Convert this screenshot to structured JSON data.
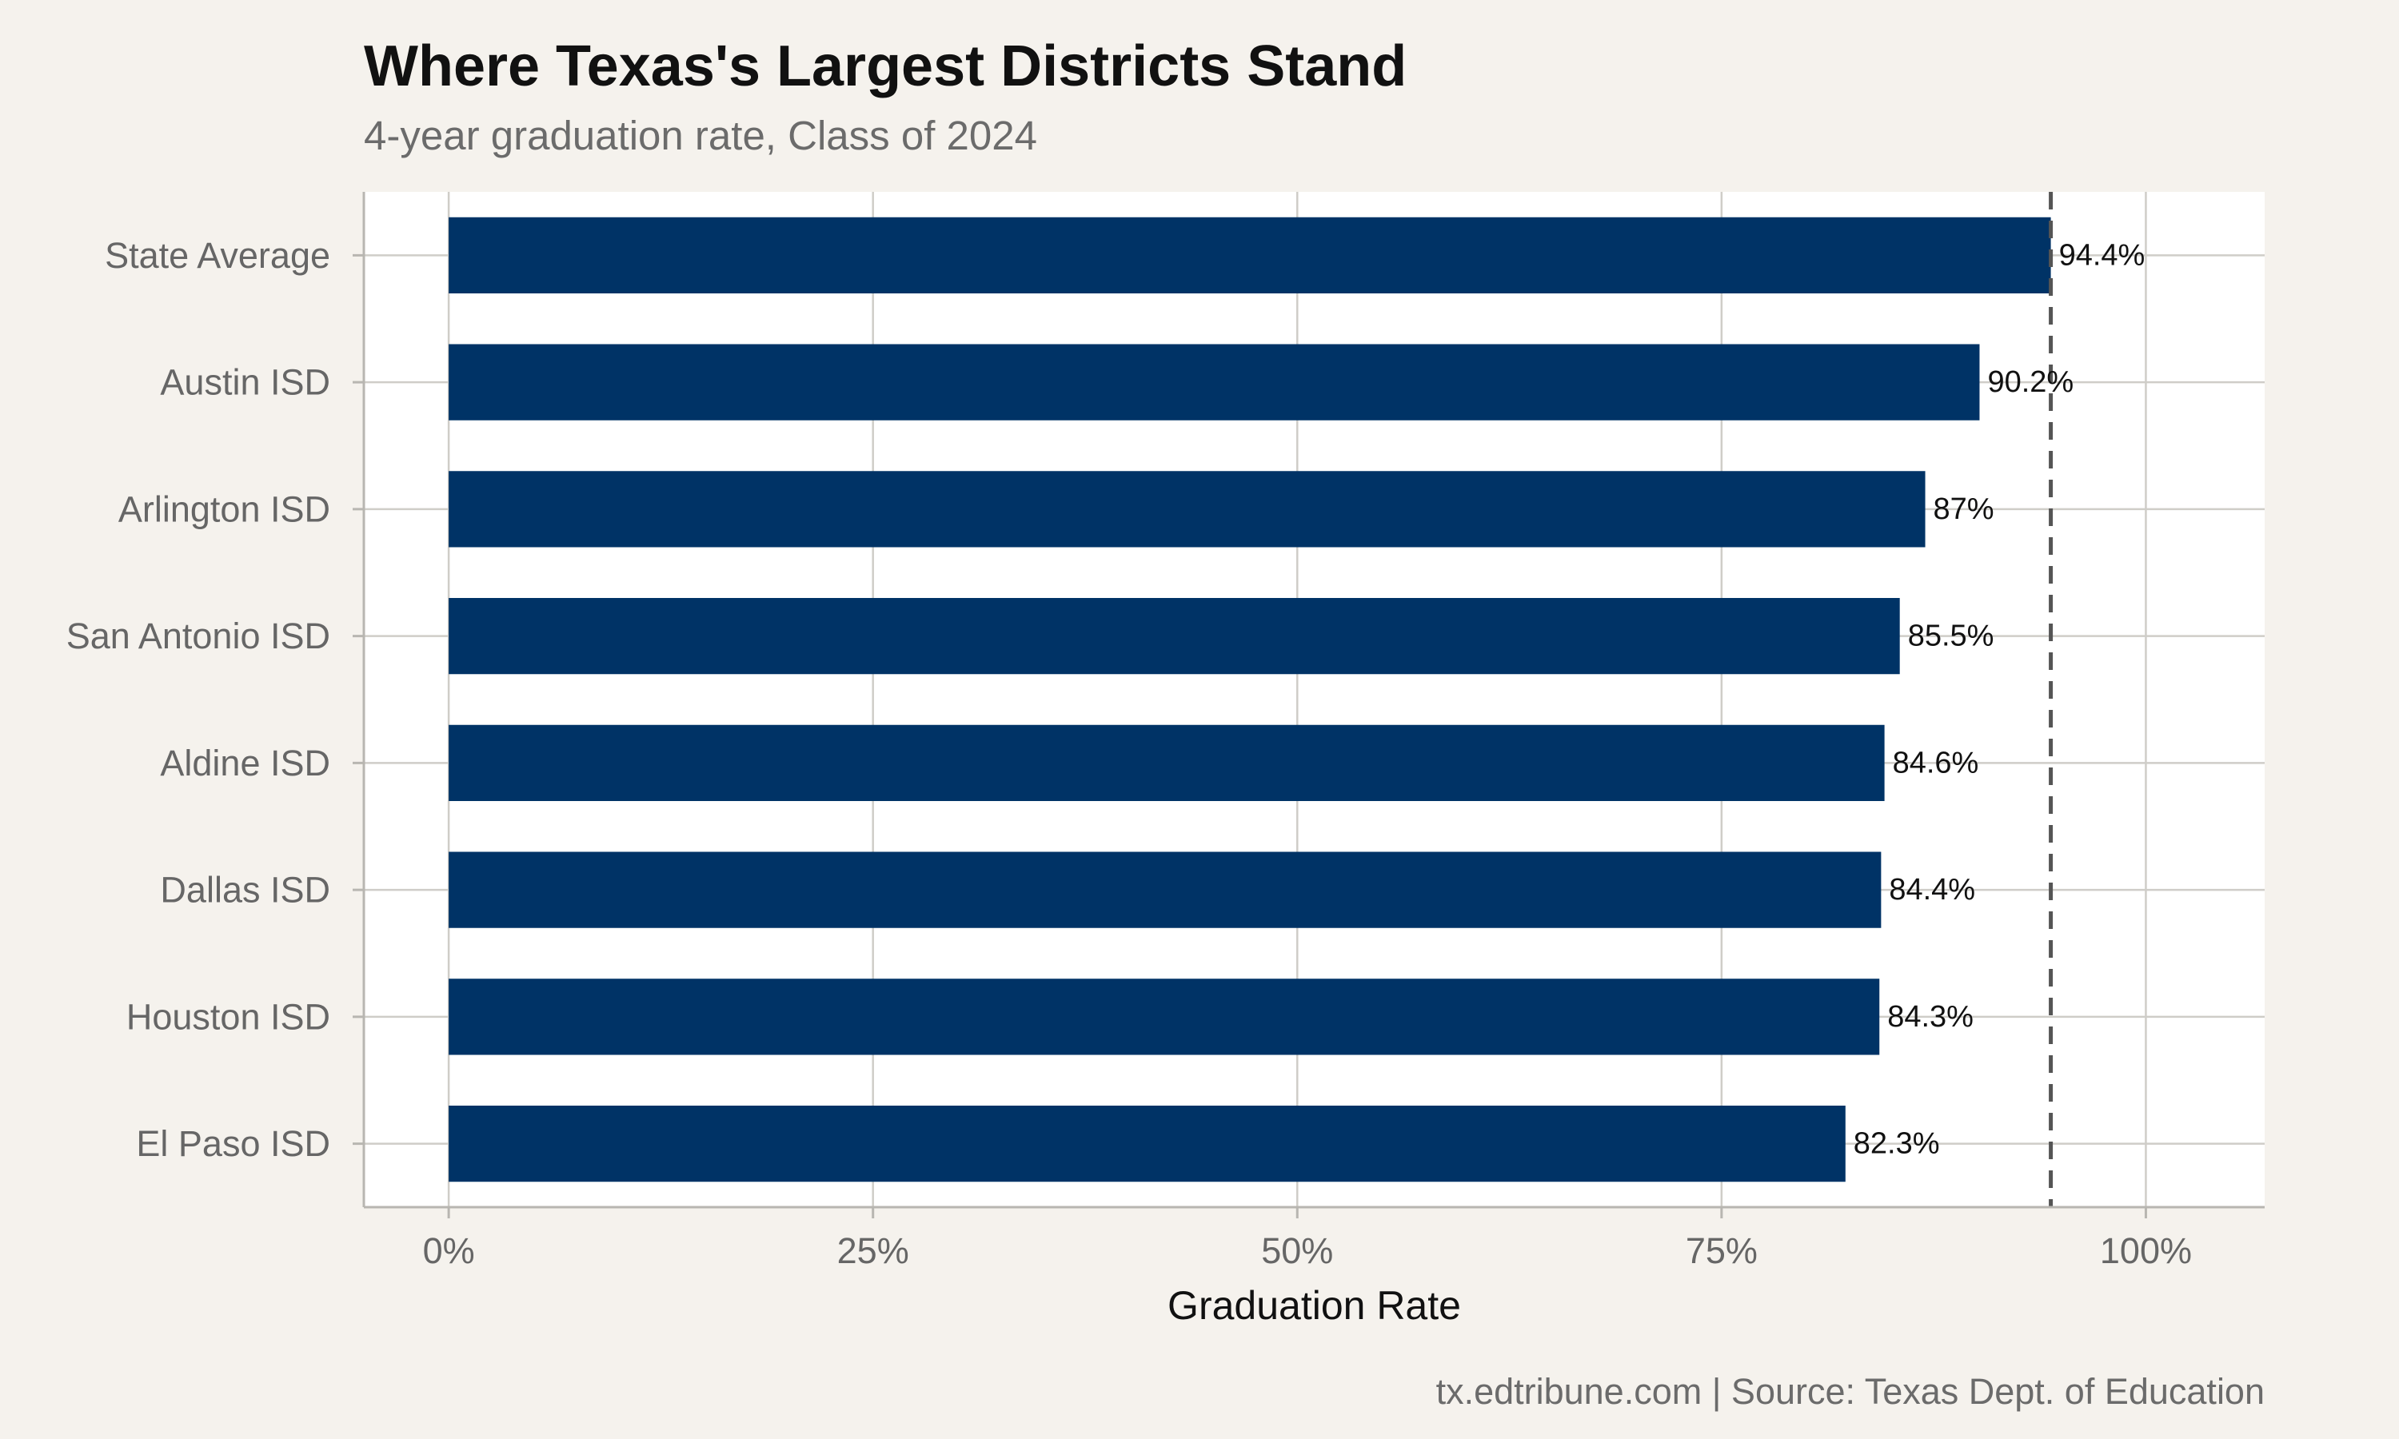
{
  "chart_data": {
    "type": "bar",
    "orientation": "horizontal",
    "title": "Where Texas's Largest Districts Stand",
    "subtitle": "4-year graduation rate, Class of 2024",
    "xlabel": "Graduation Rate",
    "ylabel": "",
    "caption": "tx.edtribune.com | Source: Texas Dept. of Education",
    "categories": [
      "State Average",
      "Austin ISD",
      "Arlington ISD",
      "San Antonio ISD",
      "Aldine ISD",
      "Dallas ISD",
      "Houston ISD",
      "El Paso ISD"
    ],
    "values": [
      94.4,
      90.2,
      87,
      85.5,
      84.6,
      84.4,
      84.3,
      82.3
    ],
    "value_labels": [
      "94.4%",
      "90.2%",
      "87%",
      "85.5%",
      "84.6%",
      "84.4%",
      "84.3%",
      "82.3%"
    ],
    "xlim": [
      -5,
      107
    ],
    "xticks": [
      0,
      25,
      50,
      75,
      100
    ],
    "xtick_labels": [
      "0%",
      "25%",
      "50%",
      "75%",
      "100%"
    ],
    "reference_line": {
      "value": 94.4,
      "style": "dashed"
    },
    "grid": true,
    "legend": "none",
    "colors": {
      "bar": "#003366",
      "background": "#f5f2ed",
      "panel": "#ffffff",
      "grid": "#cfcdc8",
      "reference_line": "#555555"
    }
  }
}
